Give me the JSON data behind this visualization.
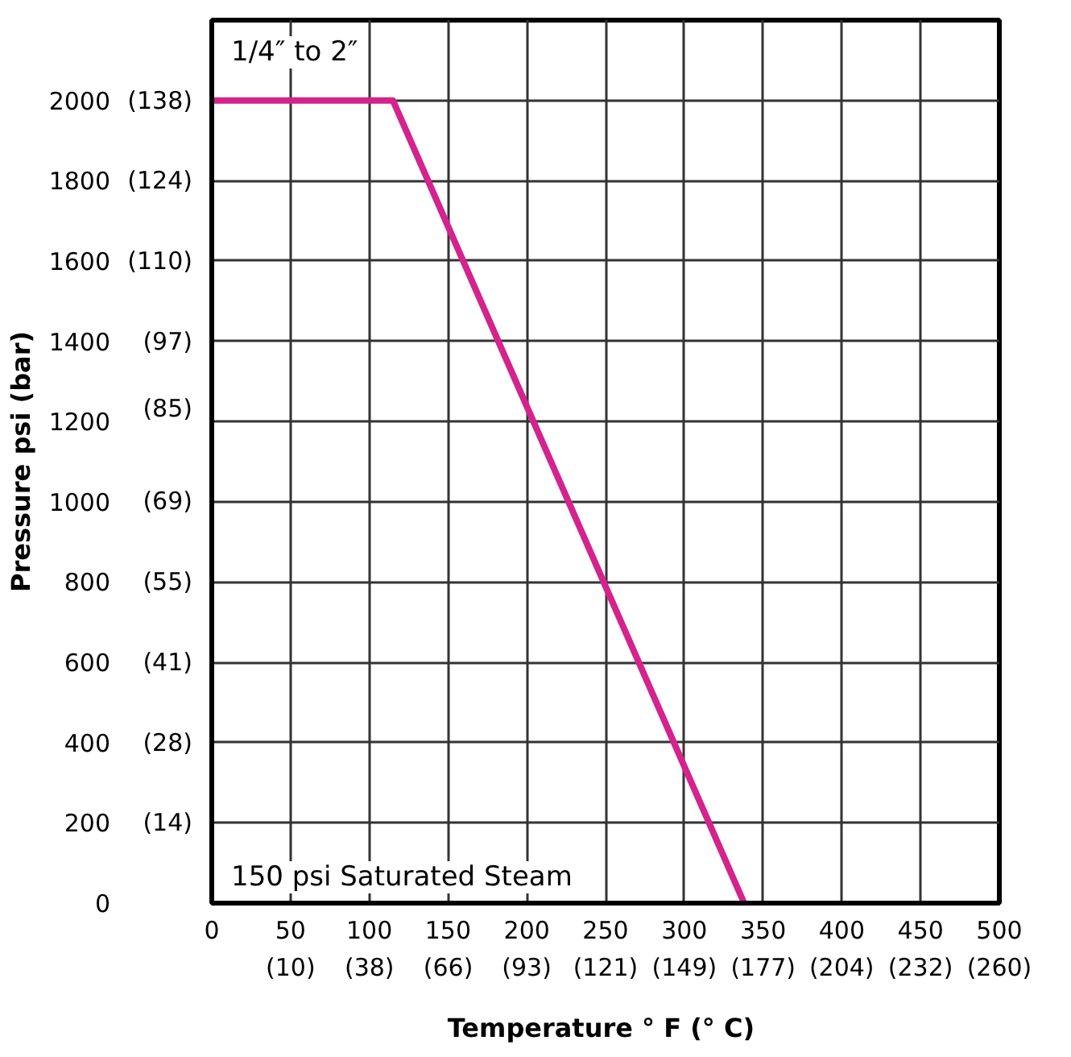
{
  "chart_data": {
    "type": "line",
    "xlabel": "Temperature ° F  (° C)",
    "ylabel": "Pressure psi (bar)",
    "series": [
      {
        "color": "#d4238c",
        "x": [
          0,
          115,
          338
        ],
        "values": [
          2000,
          2000,
          0
        ]
      }
    ],
    "xlim": [
      0,
      500
    ],
    "ylim": [
      0,
      2200
    ],
    "xticks": [
      0,
      50,
      100,
      150,
      200,
      250,
      300,
      350,
      400,
      450,
      500
    ],
    "yticks": [
      0,
      200,
      400,
      600,
      800,
      1000,
      1200,
      1400,
      1600,
      1800,
      2000,
      {
        "value": 2200,
        "label": null
      }
    ],
    "x2lim": [
      -17.8,
      260
    ],
    "x2ticks": [
      {
        "value": 10,
        "label": "(10)"
      },
      {
        "value": 37.8,
        "label": "(38)"
      },
      {
        "value": 65.6,
        "label": "(66)"
      },
      {
        "value": 93.3,
        "label": "(93)"
      },
      {
        "value": 121.1,
        "label": "(121)"
      },
      {
        "value": 148.9,
        "label": "(149)"
      },
      {
        "value": 176.7,
        "label": "(177)"
      },
      {
        "value": 204.4,
        "label": "(204)"
      },
      {
        "value": 232.2,
        "label": "(232)"
      },
      {
        "value": 260,
        "label": "(260)"
      }
    ],
    "y2lim": [
      0,
      151.7
    ],
    "y2ticks": [
      {
        "value": 13.8,
        "label": "(14)"
      },
      {
        "value": 27.6,
        "label": "(28)"
      },
      {
        "value": 41.4,
        "label": "(41)"
      },
      {
        "value": 55.2,
        "label": "(55)"
      },
      {
        "value": 69,
        "label": "(69)"
      },
      {
        "value": 85,
        "label": "(85)"
      },
      {
        "value": 96.5,
        "label": "(97)"
      },
      {
        "value": 110.3,
        "label": "(110)"
      },
      {
        "value": 124.1,
        "label": "(124)"
      },
      {
        "value": 137.9,
        "label": "(138)"
      }
    ],
    "annotations": [
      "1/4″ to 2″",
      "150 psi Saturated Steam"
    ],
    "grid": true,
    "line_style": "solid",
    "marker": "none"
  }
}
